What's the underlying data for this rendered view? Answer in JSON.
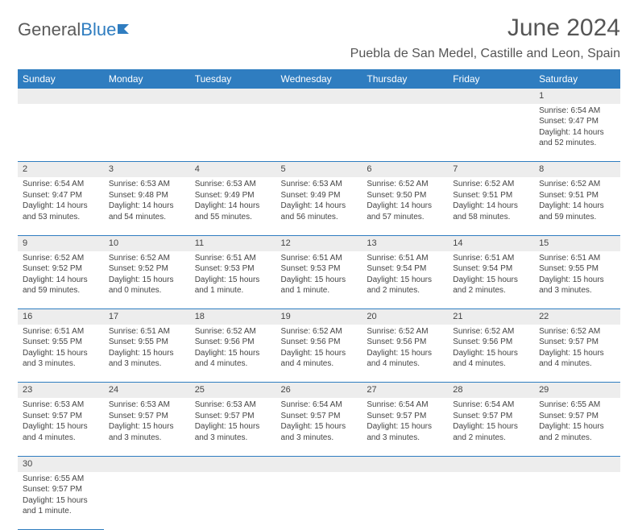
{
  "logo": {
    "part1": "General",
    "part2": "Blue"
  },
  "title": "June 2024",
  "location": "Puebla de San Medel, Castille and Leon, Spain",
  "colors": {
    "header_bg": "#2f7dc0",
    "header_text": "#ffffff",
    "daynum_bg": "#ededed",
    "border": "#2f7dc0",
    "text": "#444444",
    "logo_gray": "#5a5a5a",
    "logo_blue": "#2f7dc0"
  },
  "weekdays": [
    "Sunday",
    "Monday",
    "Tuesday",
    "Wednesday",
    "Thursday",
    "Friday",
    "Saturday"
  ],
  "weeks": [
    {
      "nums": [
        "",
        "",
        "",
        "",
        "",
        "",
        "1"
      ],
      "cells": [
        null,
        null,
        null,
        null,
        null,
        null,
        {
          "sunrise": "Sunrise: 6:54 AM",
          "sunset": "Sunset: 9:47 PM",
          "daylight": "Daylight: 14 hours and 52 minutes."
        }
      ]
    },
    {
      "nums": [
        "2",
        "3",
        "4",
        "5",
        "6",
        "7",
        "8"
      ],
      "cells": [
        {
          "sunrise": "Sunrise: 6:54 AM",
          "sunset": "Sunset: 9:47 PM",
          "daylight": "Daylight: 14 hours and 53 minutes."
        },
        {
          "sunrise": "Sunrise: 6:53 AM",
          "sunset": "Sunset: 9:48 PM",
          "daylight": "Daylight: 14 hours and 54 minutes."
        },
        {
          "sunrise": "Sunrise: 6:53 AM",
          "sunset": "Sunset: 9:49 PM",
          "daylight": "Daylight: 14 hours and 55 minutes."
        },
        {
          "sunrise": "Sunrise: 6:53 AM",
          "sunset": "Sunset: 9:49 PM",
          "daylight": "Daylight: 14 hours and 56 minutes."
        },
        {
          "sunrise": "Sunrise: 6:52 AM",
          "sunset": "Sunset: 9:50 PM",
          "daylight": "Daylight: 14 hours and 57 minutes."
        },
        {
          "sunrise": "Sunrise: 6:52 AM",
          "sunset": "Sunset: 9:51 PM",
          "daylight": "Daylight: 14 hours and 58 minutes."
        },
        {
          "sunrise": "Sunrise: 6:52 AM",
          "sunset": "Sunset: 9:51 PM",
          "daylight": "Daylight: 14 hours and 59 minutes."
        }
      ]
    },
    {
      "nums": [
        "9",
        "10",
        "11",
        "12",
        "13",
        "14",
        "15"
      ],
      "cells": [
        {
          "sunrise": "Sunrise: 6:52 AM",
          "sunset": "Sunset: 9:52 PM",
          "daylight": "Daylight: 14 hours and 59 minutes."
        },
        {
          "sunrise": "Sunrise: 6:52 AM",
          "sunset": "Sunset: 9:52 PM",
          "daylight": "Daylight: 15 hours and 0 minutes."
        },
        {
          "sunrise": "Sunrise: 6:51 AM",
          "sunset": "Sunset: 9:53 PM",
          "daylight": "Daylight: 15 hours and 1 minute."
        },
        {
          "sunrise": "Sunrise: 6:51 AM",
          "sunset": "Sunset: 9:53 PM",
          "daylight": "Daylight: 15 hours and 1 minute."
        },
        {
          "sunrise": "Sunrise: 6:51 AM",
          "sunset": "Sunset: 9:54 PM",
          "daylight": "Daylight: 15 hours and 2 minutes."
        },
        {
          "sunrise": "Sunrise: 6:51 AM",
          "sunset": "Sunset: 9:54 PM",
          "daylight": "Daylight: 15 hours and 2 minutes."
        },
        {
          "sunrise": "Sunrise: 6:51 AM",
          "sunset": "Sunset: 9:55 PM",
          "daylight": "Daylight: 15 hours and 3 minutes."
        }
      ]
    },
    {
      "nums": [
        "16",
        "17",
        "18",
        "19",
        "20",
        "21",
        "22"
      ],
      "cells": [
        {
          "sunrise": "Sunrise: 6:51 AM",
          "sunset": "Sunset: 9:55 PM",
          "daylight": "Daylight: 15 hours and 3 minutes."
        },
        {
          "sunrise": "Sunrise: 6:51 AM",
          "sunset": "Sunset: 9:55 PM",
          "daylight": "Daylight: 15 hours and 3 minutes."
        },
        {
          "sunrise": "Sunrise: 6:52 AM",
          "sunset": "Sunset: 9:56 PM",
          "daylight": "Daylight: 15 hours and 4 minutes."
        },
        {
          "sunrise": "Sunrise: 6:52 AM",
          "sunset": "Sunset: 9:56 PM",
          "daylight": "Daylight: 15 hours and 4 minutes."
        },
        {
          "sunrise": "Sunrise: 6:52 AM",
          "sunset": "Sunset: 9:56 PM",
          "daylight": "Daylight: 15 hours and 4 minutes."
        },
        {
          "sunrise": "Sunrise: 6:52 AM",
          "sunset": "Sunset: 9:56 PM",
          "daylight": "Daylight: 15 hours and 4 minutes."
        },
        {
          "sunrise": "Sunrise: 6:52 AM",
          "sunset": "Sunset: 9:57 PM",
          "daylight": "Daylight: 15 hours and 4 minutes."
        }
      ]
    },
    {
      "nums": [
        "23",
        "24",
        "25",
        "26",
        "27",
        "28",
        "29"
      ],
      "cells": [
        {
          "sunrise": "Sunrise: 6:53 AM",
          "sunset": "Sunset: 9:57 PM",
          "daylight": "Daylight: 15 hours and 4 minutes."
        },
        {
          "sunrise": "Sunrise: 6:53 AM",
          "sunset": "Sunset: 9:57 PM",
          "daylight": "Daylight: 15 hours and 3 minutes."
        },
        {
          "sunrise": "Sunrise: 6:53 AM",
          "sunset": "Sunset: 9:57 PM",
          "daylight": "Daylight: 15 hours and 3 minutes."
        },
        {
          "sunrise": "Sunrise: 6:54 AM",
          "sunset": "Sunset: 9:57 PM",
          "daylight": "Daylight: 15 hours and 3 minutes."
        },
        {
          "sunrise": "Sunrise: 6:54 AM",
          "sunset": "Sunset: 9:57 PM",
          "daylight": "Daylight: 15 hours and 3 minutes."
        },
        {
          "sunrise": "Sunrise: 6:54 AM",
          "sunset": "Sunset: 9:57 PM",
          "daylight": "Daylight: 15 hours and 2 minutes."
        },
        {
          "sunrise": "Sunrise: 6:55 AM",
          "sunset": "Sunset: 9:57 PM",
          "daylight": "Daylight: 15 hours and 2 minutes."
        }
      ]
    },
    {
      "nums": [
        "30",
        "",
        "",
        "",
        "",
        "",
        ""
      ],
      "cells": [
        {
          "sunrise": "Sunrise: 6:55 AM",
          "sunset": "Sunset: 9:57 PM",
          "daylight": "Daylight: 15 hours and 1 minute."
        },
        null,
        null,
        null,
        null,
        null,
        null
      ]
    }
  ]
}
